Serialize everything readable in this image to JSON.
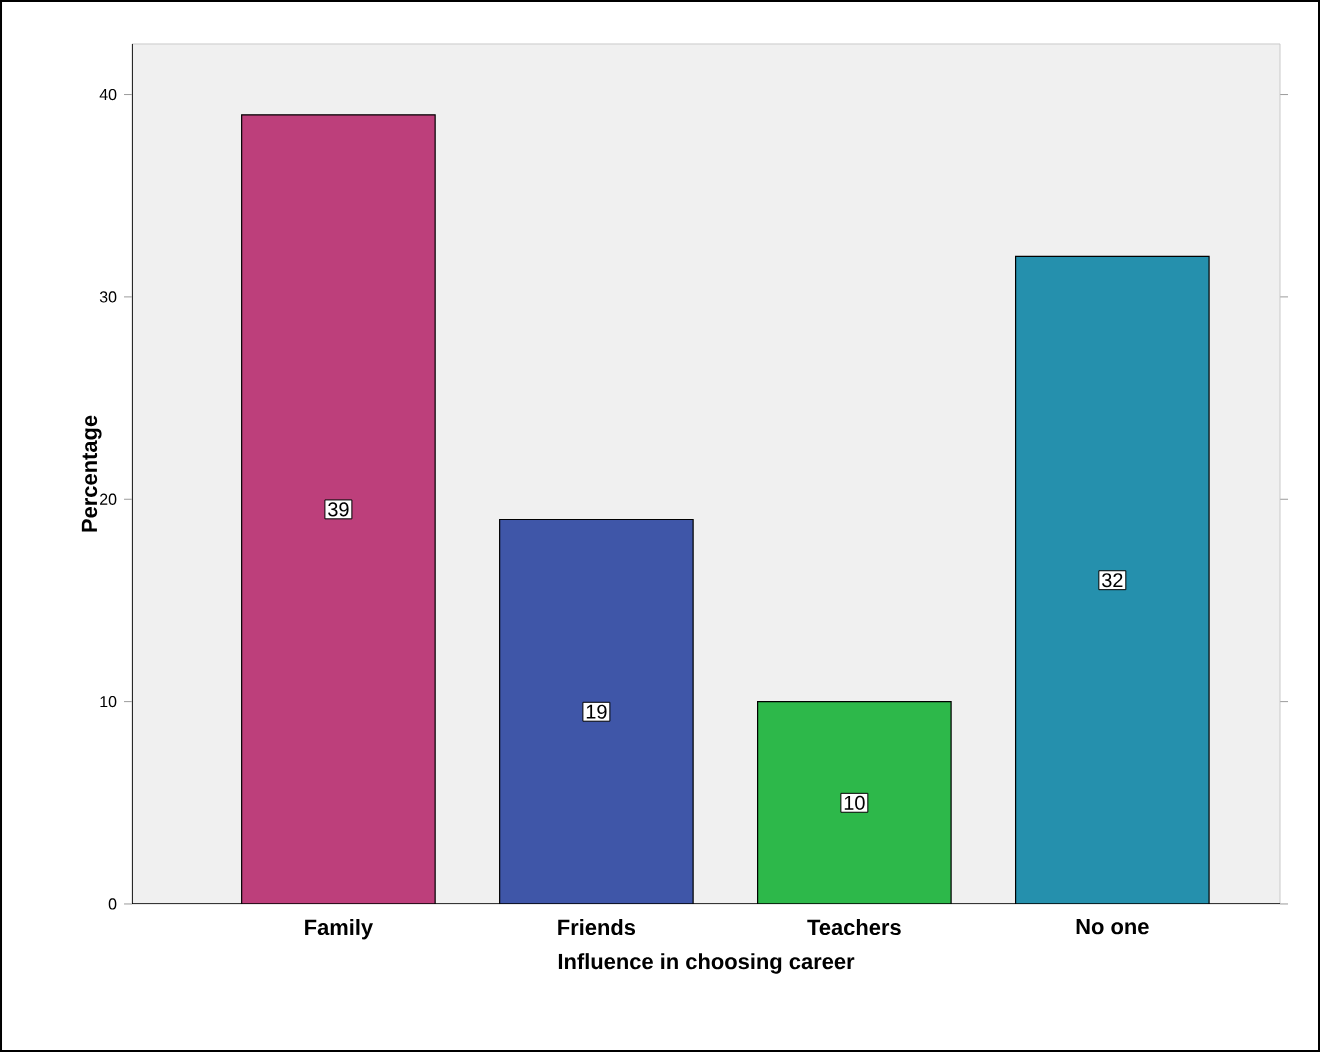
{
  "chart_data": {
    "type": "bar",
    "xlabel": "Influence in choosing career",
    "ylabel": "Percentage",
    "categories": [
      "Family",
      "Friends",
      "Teachers",
      "No one"
    ],
    "values": [
      39,
      19,
      10,
      32
    ],
    "colors": [
      "#bd3f7b",
      "#3f56a8",
      "#2db84a",
      "#2590ad"
    ],
    "ylim": [
      0,
      42.5
    ],
    "yticks": [
      0,
      10,
      20,
      30,
      40
    ],
    "data_labels": true
  }
}
